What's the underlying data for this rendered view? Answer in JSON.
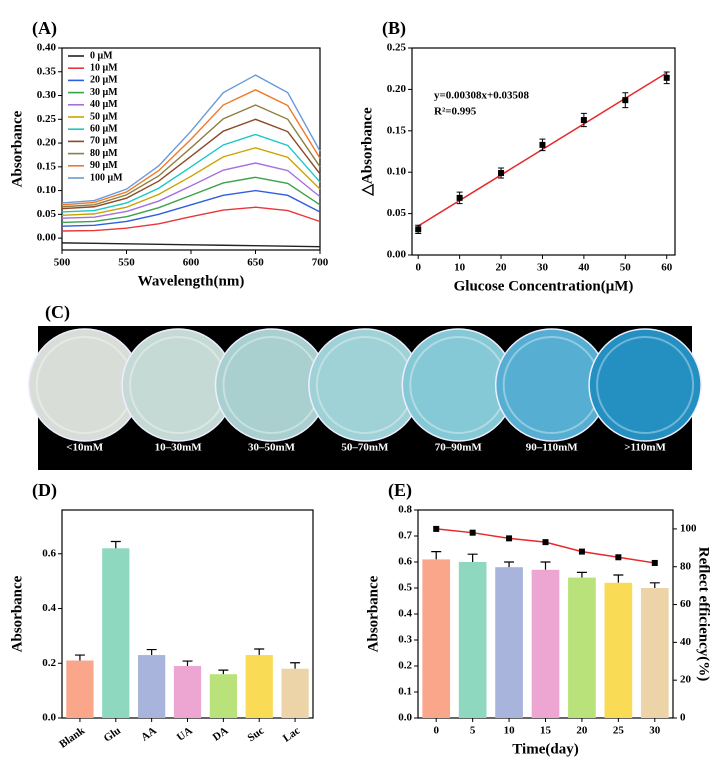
{
  "chart_data": [
    {
      "type": "line",
      "title": "(A)",
      "x_label": "Wavelength(nm)",
      "y_label": "Absorbance",
      "x": [
        500,
        525,
        550,
        575,
        600,
        625,
        650,
        675,
        700
      ],
      "xlim": [
        500,
        700
      ],
      "xticks": [
        500,
        550,
        600,
        650,
        700
      ],
      "ylim": [
        -0.025,
        0.4
      ],
      "yticks": [
        {
          "value": 0,
          "label": "0.00"
        },
        {
          "value": 0.05,
          "label": "0.05"
        },
        {
          "value": 0.1,
          "label": "0.10"
        },
        {
          "value": 0.15,
          "label": "0.15"
        },
        {
          "value": 0.2,
          "label": "0.20"
        },
        {
          "value": 0.25,
          "label": "0.25"
        },
        {
          "value": 0.3,
          "label": "0.30"
        },
        {
          "value": 0.35,
          "label": "0.35"
        },
        {
          "value": 0.4,
          "label": "0.40"
        }
      ],
      "legend": "upper-left",
      "series": [
        {
          "name": "0 μM",
          "color": "#222222",
          "values": [
            -0.01,
            -0.011,
            -0.012,
            -0.013,
            -0.014,
            -0.015,
            -0.016,
            -0.017,
            -0.018
          ]
        },
        {
          "name": "10 μM",
          "color": "#e8373a",
          "values": [
            0.015,
            0.016,
            0.021,
            0.03,
            0.045,
            0.059,
            0.065,
            0.058,
            0.035
          ]
        },
        {
          "name": "20 μM",
          "color": "#2f5fe0",
          "values": [
            0.025,
            0.027,
            0.035,
            0.05,
            0.07,
            0.09,
            0.1,
            0.09,
            0.055
          ]
        },
        {
          "name": "30 μM",
          "color": "#3aa24a",
          "values": [
            0.033,
            0.035,
            0.045,
            0.064,
            0.09,
            0.116,
            0.128,
            0.115,
            0.07
          ]
        },
        {
          "name": "40 μM",
          "color": "#a66fe0",
          "values": [
            0.042,
            0.044,
            0.056,
            0.078,
            0.11,
            0.143,
            0.158,
            0.142,
            0.087
          ]
        },
        {
          "name": "50 μM",
          "color": "#c9a400",
          "values": [
            0.048,
            0.051,
            0.065,
            0.092,
            0.13,
            0.171,
            0.19,
            0.17,
            0.103
          ]
        },
        {
          "name": "60 μM",
          "color": "#19c8c8",
          "values": [
            0.055,
            0.058,
            0.074,
            0.105,
            0.15,
            0.196,
            0.218,
            0.195,
            0.118
          ]
        },
        {
          "name": "70 μM",
          "color": "#8a4a2a",
          "values": [
            0.062,
            0.066,
            0.084,
            0.12,
            0.172,
            0.225,
            0.25,
            0.224,
            0.135
          ]
        },
        {
          "name": "80 μM",
          "color": "#8c8040",
          "values": [
            0.066,
            0.07,
            0.091,
            0.131,
            0.19,
            0.251,
            0.28,
            0.25,
            0.15
          ]
        },
        {
          "name": "90 μM",
          "color": "#f07828",
          "values": [
            0.07,
            0.075,
            0.097,
            0.142,
            0.208,
            0.28,
            0.312,
            0.279,
            0.168
          ]
        },
        {
          "name": "100 μM",
          "color": "#6a9ad8",
          "values": [
            0.074,
            0.079,
            0.103,
            0.152,
            0.225,
            0.306,
            0.343,
            0.306,
            0.183
          ]
        }
      ]
    },
    {
      "type": "scatter",
      "title": "(B)",
      "x_label": "Glucose Concentration(μM)",
      "y_label": "△Absorbance",
      "annotations": [
        "y=0.00308x+0.03508",
        "R²=0.995"
      ],
      "x": [
        0,
        10,
        20,
        30,
        40,
        50,
        60
      ],
      "values": [
        0.031,
        0.069,
        0.099,
        0.133,
        0.163,
        0.187,
        0.214
      ],
      "errors": [
        0.005,
        0.007,
        0.006,
        0.007,
        0.008,
        0.009,
        0.007
      ],
      "color": "#000000",
      "fit": {
        "color": "#e8282a",
        "x": [
          0,
          60
        ],
        "values": [
          0.035,
          0.22
        ]
      },
      "xlim": [
        -1.5,
        62
      ],
      "xticks": [
        0,
        10,
        20,
        30,
        40,
        50,
        60
      ],
      "ylim": [
        0,
        0.25
      ],
      "yticks": [
        {
          "value": 0,
          "label": "0.00"
        },
        {
          "value": 0.05,
          "label": "0.05"
        },
        {
          "value": 0.1,
          "label": "0.10"
        },
        {
          "value": 0.15,
          "label": "0.15"
        },
        {
          "value": 0.2,
          "label": "0.20"
        },
        {
          "value": 0.25,
          "label": "0.25"
        }
      ]
    },
    {
      "type": "bar",
      "title": "(D)",
      "y_label": "Absorbance",
      "categories": [
        "Blank",
        "Glu",
        "AA",
        "UA",
        "DA",
        "Suc",
        "Lac"
      ],
      "series": [
        {
          "values": [
            0.21,
            0.62,
            0.23,
            0.19,
            0.16,
            0.23,
            0.18
          ],
          "errors": [
            0.02,
            0.025,
            0.02,
            0.018,
            0.015,
            0.022,
            0.022
          ],
          "colors": [
            "#f9a68a",
            "#8dd8be",
            "#a9b4dc",
            "#eda5d2",
            "#b9e27a",
            "#f9db55",
            "#ecd3a8"
          ]
        }
      ],
      "ylim": [
        0,
        0.76
      ],
      "yticks": [
        {
          "value": 0,
          "label": "0.0"
        },
        {
          "value": 0.2,
          "label": "0.2"
        },
        {
          "value": 0.4,
          "label": "0.4"
        },
        {
          "value": 0.6,
          "label": "0.6"
        }
      ]
    },
    {
      "type": "bar",
      "title": "(E)",
      "x_label": "Time(day)",
      "y_label": "Absorbance",
      "y2_label": "Reflect efficiency(%)",
      "categories": [
        "0",
        "5",
        "10",
        "15",
        "20",
        "25",
        "30"
      ],
      "series": [
        {
          "values": [
            0.61,
            0.6,
            0.58,
            0.57,
            0.54,
            0.52,
            0.5
          ],
          "errors": [
            0.03,
            0.03,
            0.02,
            0.03,
            0.02,
            0.03,
            0.02
          ],
          "colors": [
            "#f9a68a",
            "#8dd8be",
            "#a9b4dc",
            "#eda5d2",
            "#b9e27a",
            "#f9db55",
            "#ecd3a8"
          ]
        },
        {
          "axis": "y2",
          "color": "#e8282a",
          "values": [
            100,
            98,
            95,
            93,
            88,
            85,
            82
          ]
        }
      ],
      "ylim": [
        0,
        0.8
      ],
      "yticks": [
        {
          "value": 0,
          "label": "0.0"
        },
        {
          "value": 0.1,
          "label": "0.1"
        },
        {
          "value": 0.2,
          "label": "0.2"
        },
        {
          "value": 0.3,
          "label": "0.3"
        },
        {
          "value": 0.4,
          "label": "0.4"
        },
        {
          "value": 0.5,
          "label": "0.5"
        },
        {
          "value": 0.6,
          "label": "0.6"
        },
        {
          "value": 0.7,
          "label": "0.7"
        },
        {
          "value": 0.8,
          "label": "0.8"
        }
      ],
      "y2lim": [
        0,
        110
      ],
      "y2ticks": [
        0,
        20,
        40,
        60,
        80,
        100
      ]
    }
  ],
  "panel_c": {
    "label": "(C)",
    "wells": [
      "<10mM",
      "10–30mM",
      "30–50mM",
      "50–70mM",
      "70–90mM",
      "90–110mM",
      ">110mM"
    ],
    "colors": [
      "#d9ddd8",
      "#c6dad5",
      "#a9d0cf",
      "#9fd2d6",
      "#86c9d6",
      "#56afd2",
      "#2490c2"
    ]
  }
}
